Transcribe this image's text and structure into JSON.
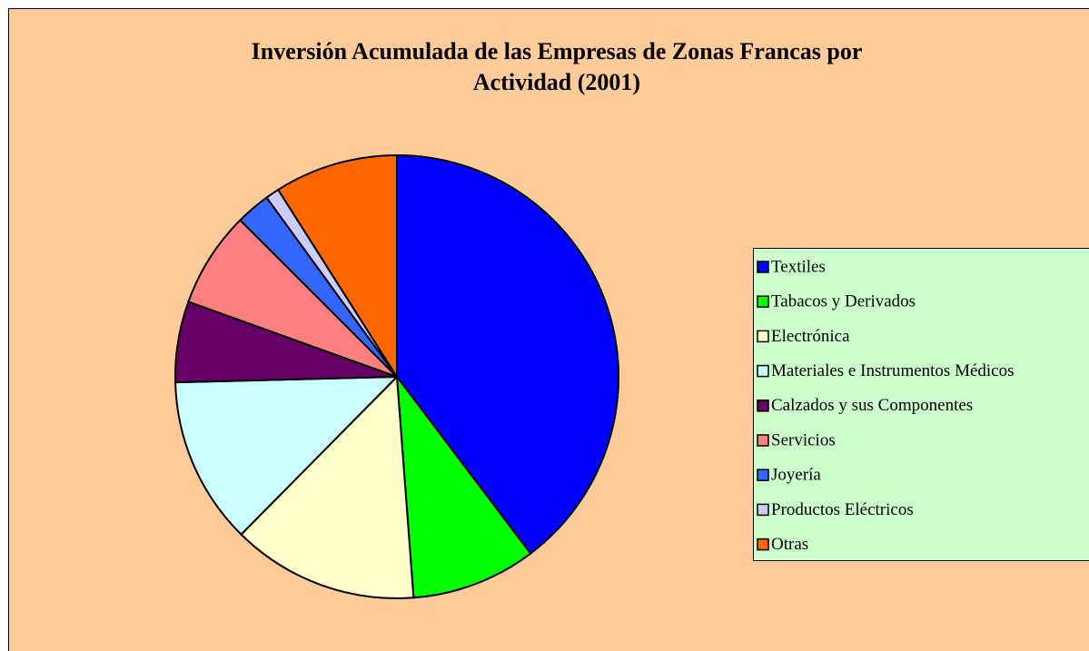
{
  "chart_data": {
    "type": "pie",
    "title": "Inversión Acumulada de las Empresas de Zonas Francas por Actividad (2001)",
    "categories": [
      "Textiles",
      "Tabacos y Derivados",
      "Electrónica",
      "Materiales e Instrumentos Médicos",
      "Calzados y sus Componentes",
      "Servicios",
      "Joyería",
      "Productos Eléctricos",
      "Otras"
    ],
    "values": [
      39.7,
      9.1,
      13.6,
      12.2,
      5.9,
      7.0,
      2.5,
      1.0,
      9.0
    ],
    "colors": [
      "#0000FF",
      "#00FF00",
      "#FFFFCC",
      "#CCFFFF",
      "#660066",
      "#FF8080",
      "#3366FF",
      "#CCCCFF",
      "#FF6600"
    ],
    "legend": "right"
  }
}
